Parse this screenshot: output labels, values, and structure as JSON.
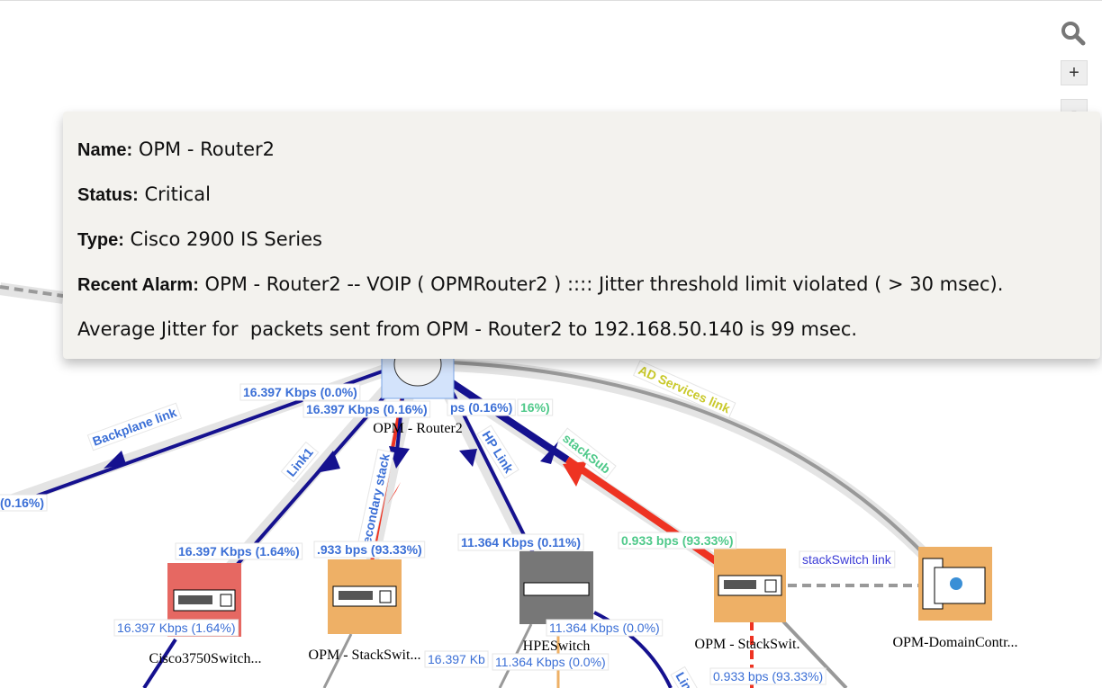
{
  "controls": {
    "search_icon": "search-icon",
    "zoom_in": "+",
    "zoom_out": "-",
    "fullscreen_icon": "fullscreen-icon"
  },
  "tooltip": {
    "name_label": "Name:",
    "name": "OPM - Router2",
    "status_label": "Status:",
    "status": "Critical",
    "type_label": "Type:",
    "type": "Cisco 2900 IS Series",
    "alarm_label": "Recent Alarm:",
    "alarm": "OPM - Router2 -- VOIP ( OPMRouter2 ) :::: Jitter threshold limit violated ( > 30 msec).  Average Jitter for  packets sent from OPM - Router2 to 192.168.50.140 is 99 msec."
  },
  "nodes": [
    {
      "name": "OPM - Router2",
      "color": "#d3e3fb"
    },
    {
      "name": "Cisco3750Switch...",
      "color": "#e66862"
    },
    {
      "name": "OPM - StackSwit...",
      "color": "#eeb066"
    },
    {
      "name": "HPESwitch",
      "color": "#777777"
    },
    {
      "name": "OPM - StackSwit.",
      "color": "#eeb066"
    },
    {
      "name": "OPM-DomainContr...",
      "color": "#eeb066"
    }
  ],
  "links": {
    "backplane": "Backplane link",
    "link1": "Link1",
    "secondary": "secondary stack",
    "hp": "HP Link",
    "stacksub": "stackSub",
    "ad": "AD Services link",
    "stackswitch": "stackSwitch link",
    "lin": "Lin"
  },
  "traffic": {
    "t1": "16.397 Kbps (0.0%)",
    "t2": "16.397 Kbps (0.16%)",
    "t3": "ps (0.16%)",
    "t4": "16%)",
    "t5": "(0.16%)",
    "t6": "16.397 Kbps (1.64%)",
    "t7": ".933 bps (93.33%)",
    "t8": "11.364 Kbps (0.11%)",
    "t9": "0.933 bps (93.33%)",
    "t10": "16.397 Kbps (1.64%)",
    "t11": "11.364 Kbps (0.0%)",
    "t12": "16.397 Kb",
    "t13": "11.364 Kbps (0.0%)",
    "t14": "0.933 bps (93.33%)"
  },
  "colors": {
    "link_blue": "#15118f",
    "critical": "#ee3322",
    "label_blue": "#3b6fd6",
    "label_green": "#4fc98a",
    "label_yellow": "#c9c92a"
  }
}
